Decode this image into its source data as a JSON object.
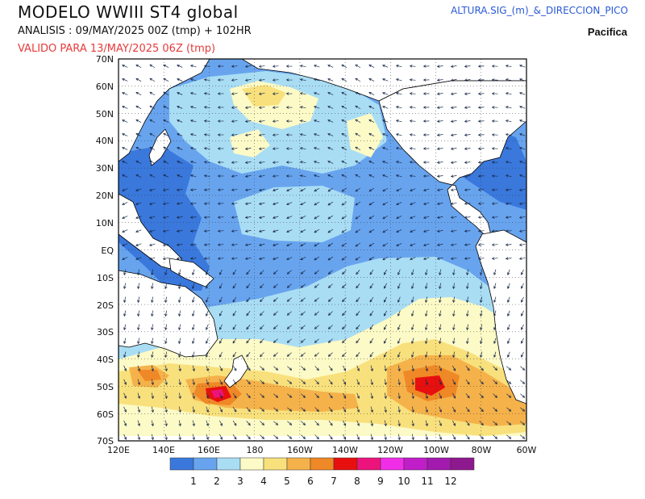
{
  "header": {
    "title": "MODELO WWIII ST4 global",
    "analysis": "ANALISIS : 09/MAY/2025 00Z  (tmp) + 102HR",
    "valid": "VALIDO PARA  13/MAY/2025 06Z  (tmp)",
    "product": "ALTURA.SIG_(m)_&_DIRECCION_PICO",
    "region": "Pacifica"
  },
  "map": {
    "lat_labels": [
      "70N",
      "60N",
      "50N",
      "40N",
      "30N",
      "20N",
      "10N",
      "EQ",
      "10S",
      "20S",
      "30S",
      "40S",
      "50S",
      "60S",
      "70S"
    ],
    "lon_labels": [
      "120E",
      "140E",
      "160E",
      "180",
      "160W",
      "140W",
      "120W",
      "100W",
      "80W",
      "60W"
    ],
    "land_color": "#ffffff",
    "coast_color": "#000000"
  },
  "colorbar": {
    "labels": [
      "1",
      "2",
      "3",
      "4",
      "5",
      "6",
      "7",
      "8",
      "9",
      "10",
      "11",
      "12"
    ],
    "colors": [
      "#3a78dc",
      "#68a4ee",
      "#a9ddf4",
      "#fcfac6",
      "#f8e07c",
      "#f5b24a",
      "#ef8826",
      "#e80f0f",
      "#ec147c",
      "#f02ee8",
      "#c01ec8",
      "#a21aae",
      "#8e188e"
    ]
  }
}
